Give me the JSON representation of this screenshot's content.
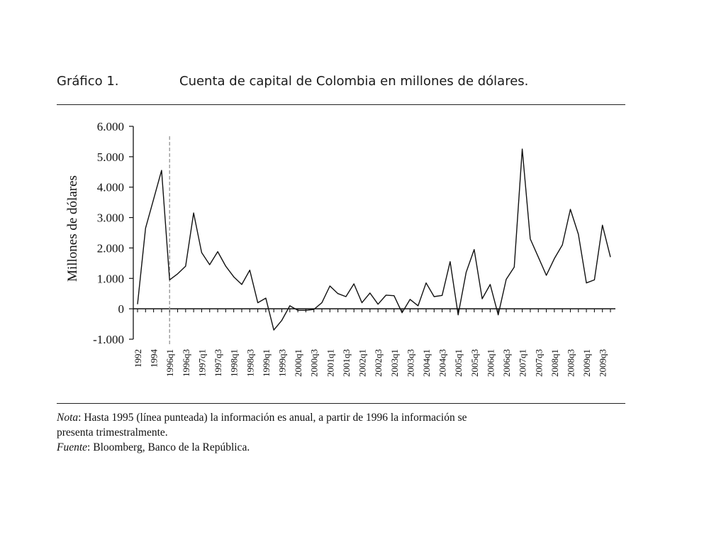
{
  "header": {
    "figure_number": "Gráfico 1.",
    "figure_title": "Cuenta de capital de Colombia en millones de dólares."
  },
  "chart_data": {
    "type": "line",
    "title": "Cuenta de capital de Colombia en millones de dólares.",
    "ylabel": "Millones de dólares",
    "xlabel": "",
    "ylim": [
      -1000,
      6000
    ],
    "y_ticks": [
      -1000,
      0,
      1000,
      2000,
      3000,
      4000,
      5000,
      6000
    ],
    "y_tick_labels": [
      "-1.000",
      "0",
      "1.000",
      "2.000",
      "3.000",
      "4.000",
      "5.000",
      "6.000"
    ],
    "x_tick_labels": [
      "1992",
      "1994",
      "1996q1",
      "1996q3",
      "1997q1",
      "1997q3",
      "1998q1",
      "1998q3",
      "1999q1",
      "1999q3",
      "2000q1",
      "2000q3",
      "2001q1",
      "2001q3",
      "2002q1",
      "2002q3",
      "2003q1",
      "2003q3",
      "2004q1",
      "2004q3",
      "2005q1",
      "2005q3",
      "2006q1",
      "2006q3",
      "2007q1",
      "2007q3",
      "2008q1",
      "2008q3",
      "2009q1",
      "2009q3"
    ],
    "grid": false,
    "legend": "none",
    "reference_line": {
      "at": "1996q1",
      "style": "dashed"
    },
    "series": [
      {
        "x": [
          "1992",
          "1993",
          "1994",
          "1995",
          "1996q1",
          "1996q2",
          "1996q3",
          "1996q4",
          "1997q1",
          "1997q2",
          "1997q3",
          "1997q4",
          "1998q1",
          "1998q2",
          "1998q3",
          "1998q4",
          "1999q1",
          "1999q2",
          "1999q3",
          "1999q4",
          "2000q1",
          "2000q2",
          "2000q3",
          "2000q4",
          "2001q1",
          "2001q2",
          "2001q3",
          "2001q4",
          "2002q1",
          "2002q2",
          "2002q3",
          "2002q4",
          "2003q1",
          "2003q2",
          "2003q3",
          "2003q4",
          "2004q1",
          "2004q2",
          "2004q3",
          "2004q4",
          "2005q1",
          "2005q2",
          "2005q3",
          "2005q4",
          "2006q1",
          "2006q2",
          "2006q3",
          "2006q4",
          "2007q1",
          "2007q2",
          "2007q3",
          "2007q4",
          "2008q1",
          "2008q2",
          "2008q3",
          "2008q4",
          "2009q1",
          "2009q2",
          "2009q3",
          "2009q4"
        ],
        "values": [
          150,
          2650,
          3600,
          4550,
          950,
          1150,
          1400,
          3150,
          1850,
          1450,
          1880,
          1400,
          1050,
          800,
          1270,
          200,
          350,
          -700,
          -380,
          100,
          -50,
          -50,
          -20,
          200,
          750,
          500,
          400,
          820,
          200,
          520,
          150,
          450,
          430,
          -130,
          310,
          100,
          850,
          400,
          440,
          1550,
          -200,
          1200,
          1950,
          330,
          800,
          -200,
          970,
          1370,
          5250,
          2300,
          1700,
          1100,
          1650,
          2100,
          3270,
          2450,
          850,
          950,
          2750,
          1700
        ]
      }
    ]
  },
  "notes": {
    "note_label": "Nota",
    "note_text": ": Hasta 1995 (línea punteada) la información es anual, a partir de 1996 la información se",
    "note_text_cont": "presenta trimestralmente.",
    "source_label": "Fuente",
    "source_text": ": Bloomberg,  Banco de la República."
  }
}
